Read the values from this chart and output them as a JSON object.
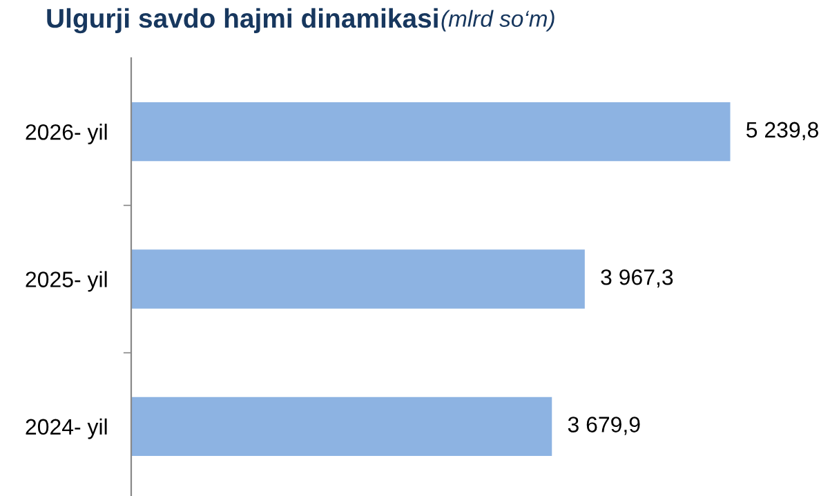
{
  "chart_data": {
    "type": "bar",
    "orientation": "horizontal",
    "title": "Ulgurji savdo hajmi dinamikasi",
    "subtitle": "(mlrd so‘m)",
    "categories": [
      "2026- yil",
      "2025- yil",
      "2024- yil"
    ],
    "series": [
      {
        "color": "#8db3e2",
        "values": [
          5239.8,
          3967.3,
          3679.9
        ],
        "value_labels": [
          "5 239,8",
          "3 967,3",
          "3 679,9"
        ]
      }
    ],
    "tick_labels": "y",
    "grid": false,
    "legend": false
  }
}
